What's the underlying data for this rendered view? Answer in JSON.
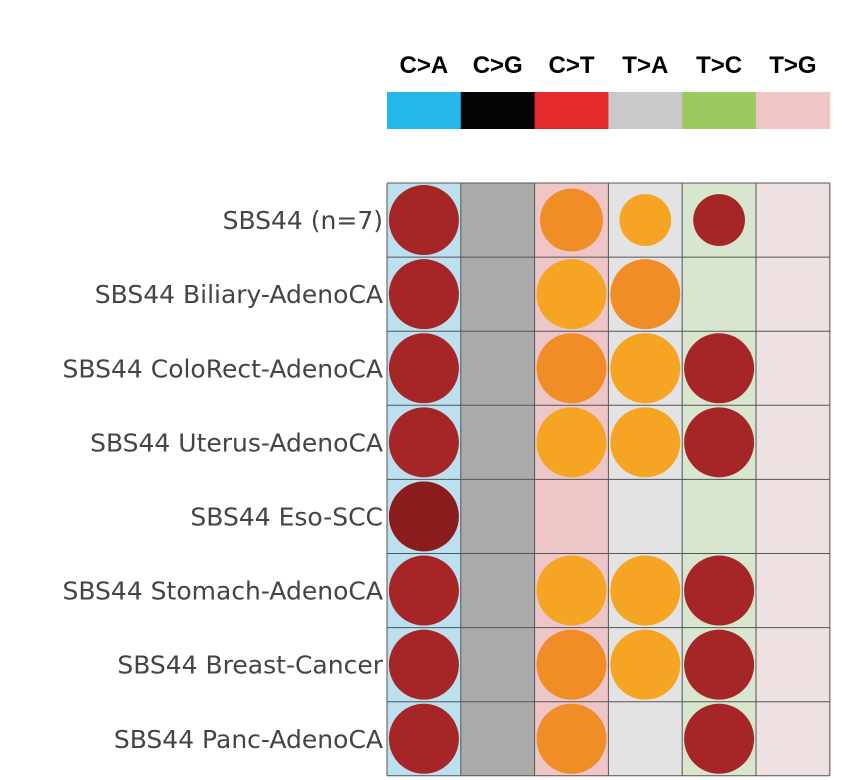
{
  "chart_data": {
    "type": "bubble-matrix",
    "columns": [
      {
        "label": "C>A",
        "color": "#23b8e8",
        "bg": "#bde0ee"
      },
      {
        "label": "C>G",
        "color": "#050505",
        "bg": "#aaaaaa"
      },
      {
        "label": "C>T",
        "color": "#e32a2c",
        "bg": "#eec6c8"
      },
      {
        "label": "T>A",
        "color": "#c9c9c9",
        "bg": "#e3e3e3"
      },
      {
        "label": "T>C",
        "color": "#9bcb5e",
        "bg": "#d9e6cf"
      },
      {
        "label": "T>G",
        "color": "#efc5c6",
        "bg": "#ede1e1"
      }
    ],
    "rows": [
      {
        "label": "SBS44 (n=7)",
        "cells": [
          {
            "size": 1.0,
            "color": "#a62628"
          },
          null,
          {
            "size": 0.9,
            "color": "#f18d27"
          },
          {
            "size": 0.74,
            "color": "#f5a523"
          },
          {
            "size": 0.74,
            "color": "#a62628"
          },
          null
        ]
      },
      {
        "label": "SBS44 Biliary-AdenoCA",
        "cells": [
          {
            "size": 1.0,
            "color": "#a62628"
          },
          null,
          {
            "size": 1.0,
            "color": "#f5a523"
          },
          {
            "size": 1.0,
            "color": "#f18d27"
          },
          null,
          null
        ]
      },
      {
        "label": "SBS44 ColoRect-AdenoCA",
        "cells": [
          {
            "size": 1.0,
            "color": "#a62628"
          },
          null,
          {
            "size": 1.0,
            "color": "#f18d27"
          },
          {
            "size": 1.0,
            "color": "#f5a523"
          },
          {
            "size": 1.0,
            "color": "#a62628"
          },
          null
        ]
      },
      {
        "label": "SBS44 Uterus-AdenoCA",
        "cells": [
          {
            "size": 1.0,
            "color": "#a62628"
          },
          null,
          {
            "size": 1.0,
            "color": "#f5a523"
          },
          {
            "size": 1.0,
            "color": "#f5a523"
          },
          {
            "size": 1.0,
            "color": "#a62628"
          },
          null
        ]
      },
      {
        "label": "SBS44 Eso-SCC",
        "cells": [
          {
            "size": 1.0,
            "color": "#8b1c1e"
          },
          null,
          null,
          null,
          null,
          null
        ]
      },
      {
        "label": "SBS44 Stomach-AdenoCA",
        "cells": [
          {
            "size": 1.0,
            "color": "#a62628"
          },
          null,
          {
            "size": 1.0,
            "color": "#f5a523"
          },
          {
            "size": 1.0,
            "color": "#f5a523"
          },
          {
            "size": 1.0,
            "color": "#a62628"
          },
          null
        ]
      },
      {
        "label": "SBS44 Breast-Cancer",
        "cells": [
          {
            "size": 1.0,
            "color": "#a62628"
          },
          null,
          {
            "size": 1.0,
            "color": "#f18d27"
          },
          {
            "size": 1.0,
            "color": "#f5a523"
          },
          {
            "size": 1.0,
            "color": "#a62628"
          },
          null
        ]
      },
      {
        "label": "SBS44 Panc-AdenoCA",
        "cells": [
          {
            "size": 1.0,
            "color": "#a62628"
          },
          null,
          {
            "size": 1.0,
            "color": "#f18d27"
          },
          null,
          {
            "size": 1.0,
            "color": "#a62628"
          },
          null
        ]
      }
    ],
    "grid_line_color": "#555555",
    "legend_placement": "top"
  }
}
